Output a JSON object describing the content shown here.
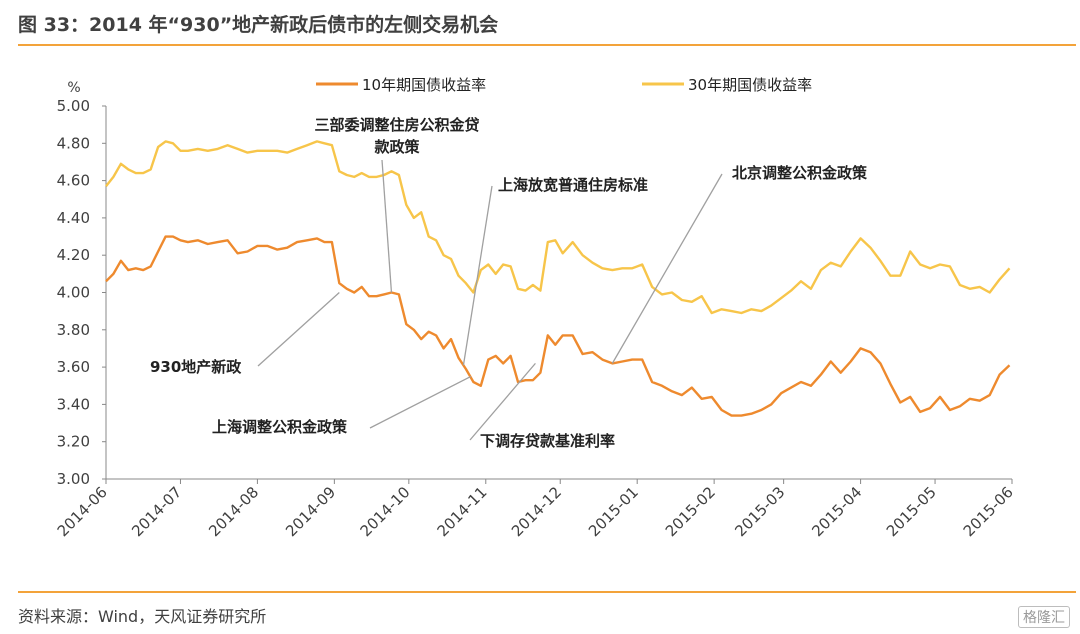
{
  "header": {
    "title": "图 33：2014 年“930”地产新政后债市的左侧交易机会"
  },
  "footer": {
    "source": "资料来源：Wind，天风证券研究所",
    "watermark": "格隆汇"
  },
  "chart_data": {
    "type": "line",
    "title": "",
    "xlabel": "",
    "ylabel": "%",
    "ylim": [
      3.0,
      5.0
    ],
    "y_ticks": [
      "5.00",
      "4.80",
      "4.60",
      "4.40",
      "4.20",
      "4.00",
      "3.80",
      "3.60",
      "3.40",
      "3.20",
      "3.00"
    ],
    "x_ticks": [
      "2014-06",
      "2014-07",
      "2014-08",
      "2014-09",
      "2014-10",
      "2014-11",
      "2014-12",
      "2015-01",
      "2015-02",
      "2015-03",
      "2015-04",
      "2015-05",
      "2015-06"
    ],
    "grid": false,
    "legend": "top",
    "series": [
      {
        "name": "10年期国债收益率",
        "color": "#ee8a2e",
        "x": [
          "2014-06-01",
          "2014-06-04",
          "2014-06-07",
          "2014-06-10",
          "2014-06-13",
          "2014-06-16",
          "2014-06-19",
          "2014-06-22",
          "2014-06-25",
          "2014-06-28",
          "2014-07-01",
          "2014-07-04",
          "2014-07-08",
          "2014-07-12",
          "2014-07-16",
          "2014-07-20",
          "2014-07-24",
          "2014-07-28",
          "2014-08-01",
          "2014-08-05",
          "2014-08-09",
          "2014-08-13",
          "2014-08-17",
          "2014-08-21",
          "2014-08-25",
          "2014-08-28",
          "2014-08-31",
          "2014-09-03",
          "2014-09-06",
          "2014-09-09",
          "2014-09-12",
          "2014-09-15",
          "2014-09-18",
          "2014-09-21",
          "2014-09-24",
          "2014-09-27",
          "2014-09-30",
          "2014-10-03",
          "2014-10-06",
          "2014-10-09",
          "2014-10-12",
          "2014-10-15",
          "2014-10-18",
          "2014-10-21",
          "2014-10-24",
          "2014-10-27",
          "2014-10-30",
          "2014-11-02",
          "2014-11-05",
          "2014-11-08",
          "2014-11-11",
          "2014-11-14",
          "2014-11-17",
          "2014-11-20",
          "2014-11-23",
          "2014-11-26",
          "2014-11-29",
          "2014-12-02",
          "2014-12-06",
          "2014-12-10",
          "2014-12-14",
          "2014-12-18",
          "2014-12-22",
          "2014-12-26",
          "2014-12-30",
          "2015-01-03",
          "2015-01-07",
          "2015-01-11",
          "2015-01-15",
          "2015-01-19",
          "2015-01-23",
          "2015-01-27",
          "2015-01-31",
          "2015-02-04",
          "2015-02-08",
          "2015-02-12",
          "2015-02-16",
          "2015-02-20",
          "2015-02-24",
          "2015-02-28",
          "2015-03-04",
          "2015-03-08",
          "2015-03-12",
          "2015-03-16",
          "2015-03-20",
          "2015-03-24",
          "2015-03-28",
          "2015-04-01",
          "2015-04-05",
          "2015-04-09",
          "2015-04-13",
          "2015-04-17",
          "2015-04-21",
          "2015-04-25",
          "2015-04-29",
          "2015-05-03",
          "2015-05-07",
          "2015-05-11",
          "2015-05-15",
          "2015-05-19",
          "2015-05-23",
          "2015-05-27",
          "2015-05-31"
        ],
        "y": [
          4.06,
          4.1,
          4.17,
          4.12,
          4.13,
          4.12,
          4.14,
          4.22,
          4.3,
          4.3,
          4.28,
          4.27,
          4.28,
          4.26,
          4.27,
          4.28,
          4.21,
          4.22,
          4.25,
          4.25,
          4.23,
          4.24,
          4.27,
          4.28,
          4.29,
          4.27,
          4.27,
          4.05,
          4.02,
          4.0,
          4.03,
          3.98,
          3.98,
          3.99,
          4.0,
          3.99,
          3.83,
          3.8,
          3.75,
          3.79,
          3.77,
          3.7,
          3.75,
          3.65,
          3.59,
          3.52,
          3.5,
          3.64,
          3.66,
          3.62,
          3.66,
          3.52,
          3.53,
          3.53,
          3.57,
          3.77,
          3.72,
          3.77,
          3.77,
          3.67,
          3.68,
          3.64,
          3.62,
          3.63,
          3.64,
          3.64,
          3.52,
          3.5,
          3.47,
          3.45,
          3.49,
          3.43,
          3.44,
          3.37,
          3.34,
          3.34,
          3.35,
          3.37,
          3.4,
          3.46,
          3.49,
          3.52,
          3.5,
          3.56,
          3.63,
          3.57,
          3.63,
          3.7,
          3.68,
          3.62,
          3.51,
          3.41,
          3.44,
          3.36,
          3.38,
          3.44,
          3.37,
          3.39,
          3.43,
          3.42,
          3.45,
          3.56,
          3.61
        ]
      },
      {
        "name": "30年期国债收益率",
        "color": "#f7c54a",
        "x": [
          "2014-06-01",
          "2014-06-04",
          "2014-06-07",
          "2014-06-10",
          "2014-06-13",
          "2014-06-16",
          "2014-06-19",
          "2014-06-22",
          "2014-06-25",
          "2014-06-28",
          "2014-07-01",
          "2014-07-04",
          "2014-07-08",
          "2014-07-12",
          "2014-07-16",
          "2014-07-20",
          "2014-07-24",
          "2014-07-28",
          "2014-08-01",
          "2014-08-05",
          "2014-08-09",
          "2014-08-13",
          "2014-08-17",
          "2014-08-21",
          "2014-08-25",
          "2014-08-28",
          "2014-08-31",
          "2014-09-03",
          "2014-09-06",
          "2014-09-09",
          "2014-09-12",
          "2014-09-15",
          "2014-09-18",
          "2014-09-21",
          "2014-09-24",
          "2014-09-27",
          "2014-09-30",
          "2014-10-03",
          "2014-10-06",
          "2014-10-09",
          "2014-10-12",
          "2014-10-15",
          "2014-10-18",
          "2014-10-21",
          "2014-10-24",
          "2014-10-27",
          "2014-10-30",
          "2014-11-02",
          "2014-11-05",
          "2014-11-08",
          "2014-11-11",
          "2014-11-14",
          "2014-11-17",
          "2014-11-20",
          "2014-11-23",
          "2014-11-26",
          "2014-11-29",
          "2014-12-02",
          "2014-12-06",
          "2014-12-10",
          "2014-12-14",
          "2014-12-18",
          "2014-12-22",
          "2014-12-26",
          "2014-12-30",
          "2015-01-03",
          "2015-01-07",
          "2015-01-11",
          "2015-01-15",
          "2015-01-19",
          "2015-01-23",
          "2015-01-27",
          "2015-01-31",
          "2015-02-04",
          "2015-02-08",
          "2015-02-12",
          "2015-02-16",
          "2015-02-20",
          "2015-02-24",
          "2015-02-28",
          "2015-03-04",
          "2015-03-08",
          "2015-03-12",
          "2015-03-16",
          "2015-03-20",
          "2015-03-24",
          "2015-03-28",
          "2015-04-01",
          "2015-04-05",
          "2015-04-09",
          "2015-04-13",
          "2015-04-17",
          "2015-04-21",
          "2015-04-25",
          "2015-04-29",
          "2015-05-03",
          "2015-05-07",
          "2015-05-11",
          "2015-05-15",
          "2015-05-19",
          "2015-05-23",
          "2015-05-27",
          "2015-05-31"
        ],
        "y": [
          4.57,
          4.62,
          4.69,
          4.66,
          4.64,
          4.64,
          4.66,
          4.78,
          4.81,
          4.8,
          4.76,
          4.76,
          4.77,
          4.76,
          4.77,
          4.79,
          4.77,
          4.75,
          4.76,
          4.76,
          4.76,
          4.75,
          4.77,
          4.79,
          4.81,
          4.8,
          4.79,
          4.65,
          4.63,
          4.62,
          4.64,
          4.62,
          4.62,
          4.63,
          4.65,
          4.63,
          4.47,
          4.4,
          4.43,
          4.3,
          4.28,
          4.2,
          4.18,
          4.09,
          4.05,
          4.0,
          4.12,
          4.15,
          4.1,
          4.15,
          4.14,
          4.02,
          4.01,
          4.04,
          4.01,
          4.27,
          4.28,
          4.21,
          4.27,
          4.2,
          4.16,
          4.13,
          4.12,
          4.13,
          4.13,
          4.15,
          4.03,
          3.99,
          4.0,
          3.96,
          3.95,
          3.98,
          3.89,
          3.91,
          3.9,
          3.89,
          3.91,
          3.9,
          3.93,
          3.97,
          4.01,
          4.06,
          4.02,
          4.12,
          4.16,
          4.14,
          4.22,
          4.29,
          4.24,
          4.17,
          4.09,
          4.09,
          4.22,
          4.15,
          4.13,
          4.15,
          4.14,
          4.04,
          4.02,
          4.03,
          4.0,
          4.07,
          4.13
        ]
      }
    ],
    "annotations": [
      {
        "text": "930地产新政"
      },
      {
        "text": "三部委调整住房公积金贷款政策"
      },
      {
        "text": "上海放宽普通住房标准"
      },
      {
        "text": "北京调整公积金政策"
      },
      {
        "text": "上海调整公积金政策"
      },
      {
        "text": "下调存贷款基准利率"
      }
    ]
  }
}
